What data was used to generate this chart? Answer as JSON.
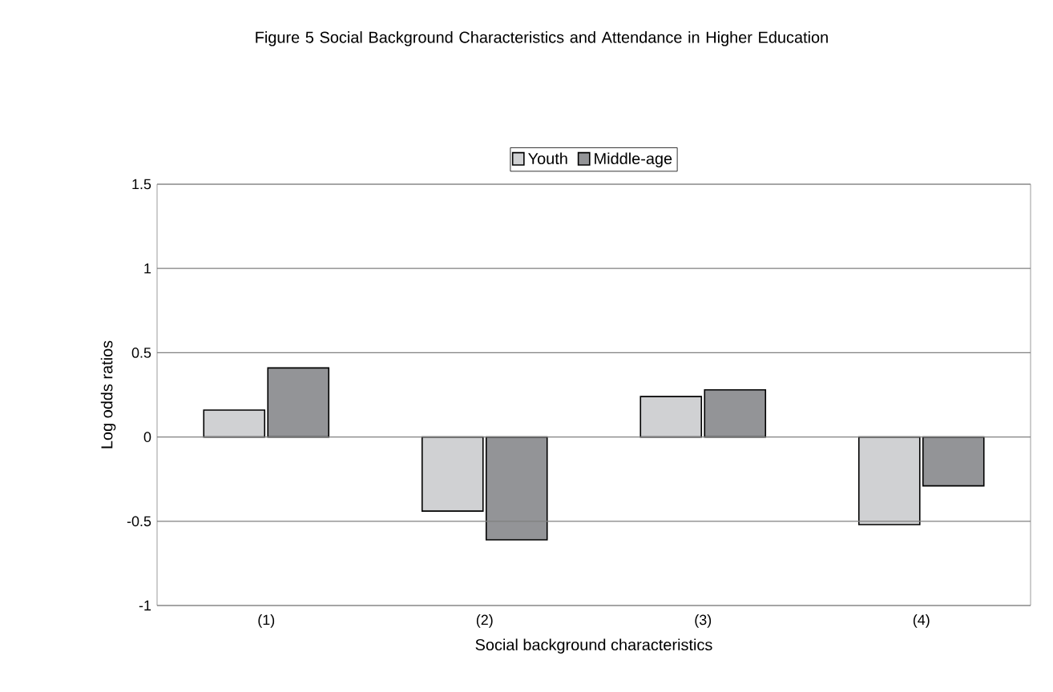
{
  "chart_data": {
    "type": "bar",
    "title": "Figure 5 Social Background Characteristics and Attendance in Higher Education",
    "xlabel": "Social background characteristics",
    "ylabel": "Log odds ratios",
    "categories": [
      "(1)",
      "(2)",
      "(3)",
      "(4)"
    ],
    "series": [
      {
        "name": "Youth",
        "color": "#d0d1d3",
        "values": [
          0.16,
          -0.44,
          0.24,
          -0.52
        ]
      },
      {
        "name": "Middle-age",
        "color": "#939497",
        "values": [
          0.41,
          -0.61,
          0.28,
          -0.29
        ]
      }
    ],
    "ylim": [
      -1,
      1.5
    ],
    "yticks": [
      -1,
      -0.5,
      0,
      0.5,
      1,
      1.5
    ],
    "grid": "y",
    "legend": "top"
  }
}
